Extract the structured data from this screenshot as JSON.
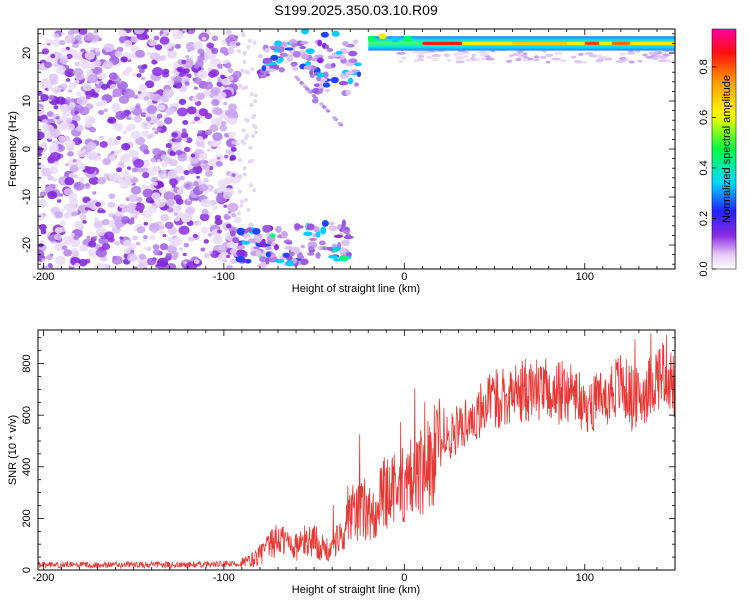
{
  "title": "S199.2025.350.03.10.R09",
  "colors": {
    "snr_line": "#e53935",
    "frame": "#000000",
    "background": "#ffffff"
  },
  "chart_data": [
    {
      "type": "heatmap",
      "xlabel": "Height of straight line (km)",
      "ylabel": "Frequency (Hz)",
      "xlim": [
        -203,
        150
      ],
      "ylim": [
        -25,
        25
      ],
      "xticks": [
        -200,
        -100,
        0,
        100
      ],
      "yticks": [
        -20,
        -10,
        0,
        10,
        20
      ],
      "colorbar": {
        "label": "Normalized spectral amplitude",
        "range": [
          0,
          0.95
        ],
        "ticks": [
          0,
          0.2,
          0.4,
          0.6,
          0.8
        ],
        "colormap": "rainbow (white → purple → blue → cyan → green → yellow → red → magenta)"
      },
      "regions": [
        {
          "description": "scattered noise",
          "x": [
            -203,
            -92
          ],
          "y": [
            -25,
            25
          ],
          "level": 0.1
        },
        {
          "description": "strong band",
          "x": [
            -20,
            150
          ],
          "y": [
            20.5,
            23.5
          ],
          "level": 0.75
        },
        {
          "description": "upper arc",
          "x": [
            -80,
            -25
          ],
          "y": [
            10,
            25
          ],
          "level": 0.2
        },
        {
          "description": "lower arc",
          "x": [
            -95,
            -30
          ],
          "y": [
            -25,
            -15
          ],
          "level": 0.2
        }
      ]
    },
    {
      "type": "line",
      "xlabel": "Height of straight line (km)",
      "ylabel": "SNR (10 * v/v)",
      "xlim": [
        -203,
        150
      ],
      "ylim": [
        0,
        930
      ],
      "xticks": [
        -200,
        -100,
        0,
        100
      ],
      "yticks": [
        0,
        200,
        400,
        600,
        800
      ],
      "series": [
        {
          "x": [
            -203,
            -180,
            -160,
            -140,
            -120,
            -100,
            -90,
            -85,
            -80,
            -75,
            -70,
            -65,
            -60,
            -55,
            -50,
            -45,
            -40,
            -35,
            -30,
            -25,
            -20,
            -15,
            -10,
            -5,
            0,
            5,
            10,
            15,
            20,
            25,
            30,
            35,
            40,
            45,
            50,
            55,
            60,
            65,
            70,
            75,
            80,
            85,
            90,
            95,
            100,
            105,
            110,
            115,
            120,
            125,
            130,
            135,
            140,
            145,
            150
          ],
          "y": [
            20,
            20,
            20,
            20,
            20,
            22,
            25,
            35,
            60,
            90,
            120,
            110,
            90,
            110,
            120,
            80,
            70,
            150,
            220,
            230,
            200,
            260,
            300,
            330,
            320,
            360,
            400,
            430,
            470,
            520,
            550,
            580,
            600,
            640,
            660,
            680,
            680,
            690,
            700,
            700,
            690,
            680,
            700,
            680,
            620,
            650,
            670,
            700,
            720,
            680,
            660,
            700,
            750,
            780,
            700
          ]
        }
      ]
    }
  ]
}
